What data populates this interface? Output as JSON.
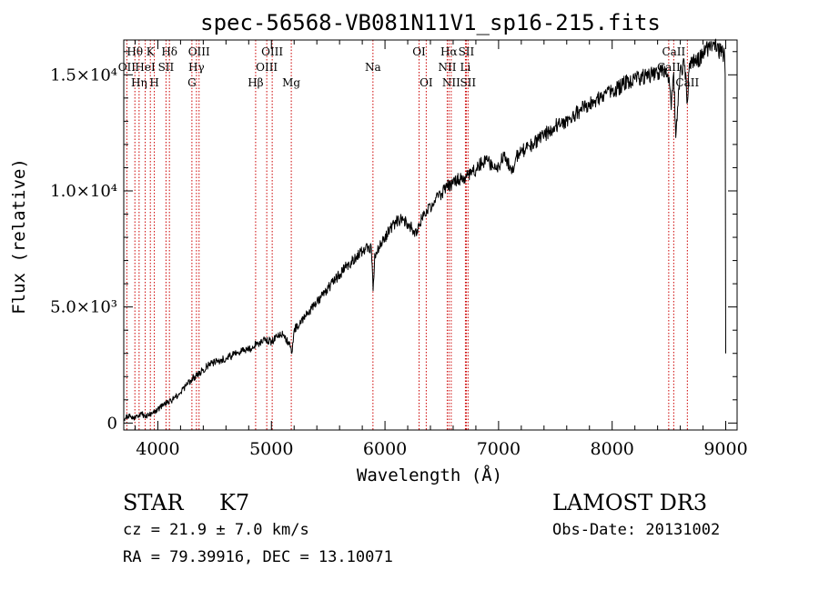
{
  "chart_data": {
    "type": "line",
    "title": "spec-56568-VB081N11V1_sp16-215.fits",
    "xlabel": "Wavelength (Å)",
    "ylabel": "Flux (relative)",
    "xlim": [
      3700,
      9100
    ],
    "ylim": [
      -300,
      16500
    ],
    "x_ticks": [
      {
        "value": 4000,
        "label": "4000"
      },
      {
        "value": 5000,
        "label": "5000"
      },
      {
        "value": 6000,
        "label": "6000"
      },
      {
        "value": 7000,
        "label": "7000"
      },
      {
        "value": 8000,
        "label": "8000"
      },
      {
        "value": 9000,
        "label": "9000"
      }
    ],
    "y_ticks": [
      {
        "value": 0,
        "label": "0"
      },
      {
        "value": 5000,
        "label": "5.0×10³"
      },
      {
        "value": 10000,
        "label": "1.0×10⁴"
      },
      {
        "value": 15000,
        "label": "1.5×10⁴"
      }
    ],
    "series": [
      {
        "name": "flux",
        "x": [
          3700,
          3750,
          3800,
          3850,
          3900,
          3950,
          4000,
          4050,
          4100,
          4150,
          4200,
          4250,
          4300,
          4350,
          4400,
          4450,
          4500,
          4550,
          4600,
          4650,
          4700,
          4750,
          4800,
          4850,
          4870,
          4900,
          4950,
          5000,
          5050,
          5100,
          5150,
          5180,
          5200,
          5250,
          5300,
          5350,
          5400,
          5450,
          5500,
          5550,
          5600,
          5650,
          5700,
          5750,
          5800,
          5850,
          5880,
          5895,
          5910,
          5950,
          6000,
          6050,
          6100,
          6150,
          6200,
          6250,
          6280,
          6300,
          6350,
          6400,
          6450,
          6500,
          6550,
          6600,
          6650,
          6700,
          6750,
          6800,
          6850,
          6900,
          6950,
          7000,
          7050,
          7100,
          7130,
          7150,
          7200,
          7250,
          7300,
          7350,
          7400,
          7450,
          7500,
          7550,
          7600,
          7650,
          7700,
          7750,
          7800,
          7850,
          7900,
          7950,
          8000,
          8050,
          8100,
          8150,
          8200,
          8250,
          8300,
          8350,
          8400,
          8450,
          8498,
          8520,
          8542,
          8560,
          8600,
          8640,
          8662,
          8680,
          8700,
          8750,
          8800,
          8850,
          8900,
          8950,
          8990,
          8995,
          9000
        ],
        "y": [
          200,
          300,
          200,
          400,
          300,
          400,
          600,
          800,
          900,
          1100,
          1300,
          1600,
          1900,
          2100,
          2300,
          2500,
          2600,
          2700,
          2800,
          2900,
          3000,
          3100,
          3200,
          3300,
          3500,
          3400,
          3600,
          3500,
          3700,
          3800,
          3500,
          3000,
          4000,
          4300,
          4600,
          4900,
          5200,
          5500,
          5800,
          6100,
          6400,
          6700,
          6900,
          7200,
          7400,
          7600,
          7500,
          5700,
          7300,
          7600,
          8000,
          8400,
          8700,
          8800,
          8600,
          8300,
          8100,
          8600,
          9000,
          9300,
          9700,
          9900,
          10200,
          10300,
          10500,
          10600,
          10700,
          10900,
          11200,
          11300,
          11000,
          11100,
          11500,
          11000,
          10800,
          11400,
          11700,
          11800,
          12000,
          12200,
          12400,
          12600,
          12800,
          12900,
          13000,
          13200,
          13400,
          13600,
          13800,
          13900,
          14000,
          14200,
          14300,
          14400,
          14600,
          14700,
          14800,
          14900,
          14950,
          15000,
          15100,
          15200,
          14800,
          13500,
          15100,
          12300,
          15300,
          15400,
          13800,
          15500,
          15500,
          15600,
          15900,
          16200,
          16400,
          16000,
          15800,
          15000,
          3000
        ]
      }
    ],
    "line_annotations": [
      {
        "wavelength": 3798,
        "label": "Hθ",
        "row": 1
      },
      {
        "wavelength": 3727,
        "label": "OII",
        "row": 2
      },
      {
        "wavelength": 3835,
        "label": "Hη",
        "row": 3
      },
      {
        "wavelength": 3889,
        "label": "HeI",
        "row": 2
      },
      {
        "wavelength": 3934,
        "label": "K",
        "row": 1
      },
      {
        "wavelength": 3969,
        "label": "H",
        "row": 3
      },
      {
        "wavelength": 4072,
        "label": "SII",
        "row": 2
      },
      {
        "wavelength": 4102,
        "label": "Hδ",
        "row": 1
      },
      {
        "wavelength": 4300,
        "label": "G",
        "row": 3
      },
      {
        "wavelength": 4340,
        "label": "Hγ",
        "row": 2
      },
      {
        "wavelength": 4363,
        "label": "OIII",
        "row": 1
      },
      {
        "wavelength": 4861,
        "label": "Hβ",
        "row": 3
      },
      {
        "wavelength": 4959,
        "label": "OIII",
        "row": 2
      },
      {
        "wavelength": 5007,
        "label": "OIII",
        "row": 1
      },
      {
        "wavelength": 5175,
        "label": "Mg",
        "row": 3
      },
      {
        "wavelength": 5894,
        "label": "Na",
        "row": 2
      },
      {
        "wavelength": 6300,
        "label": "OI",
        "row": 1
      },
      {
        "wavelength": 6363,
        "label": "OI",
        "row": 3
      },
      {
        "wavelength": 6548,
        "label": "NII",
        "row": 2
      },
      {
        "wavelength": 6563,
        "label": "Hα",
        "row": 1
      },
      {
        "wavelength": 6583,
        "label": "NII",
        "row": 3
      },
      {
        "wavelength": 6708,
        "label": "Li",
        "row": 2
      },
      {
        "wavelength": 6716,
        "label": "SII",
        "row": 1
      },
      {
        "wavelength": 6731,
        "label": "SII",
        "row": 3
      },
      {
        "wavelength": 8498,
        "label": "CaII",
        "row": 2
      },
      {
        "wavelength": 8542,
        "label": "CaII",
        "row": 1
      },
      {
        "wavelength": 8662,
        "label": "CaII",
        "row": 3
      }
    ],
    "colors": {
      "spectrum": "#000000",
      "line_marker": "#cc0000",
      "axes": "#000000",
      "background": "#ffffff"
    }
  },
  "info": {
    "object_class": "STAR",
    "subclass": "K7",
    "redshift": "cz = 21.9 ± 7.0 km/s",
    "coordinates": "RA =  79.39916, DEC =  13.10071",
    "survey": "LAMOST DR3",
    "obs_date": "Obs-Date: 20131002"
  }
}
